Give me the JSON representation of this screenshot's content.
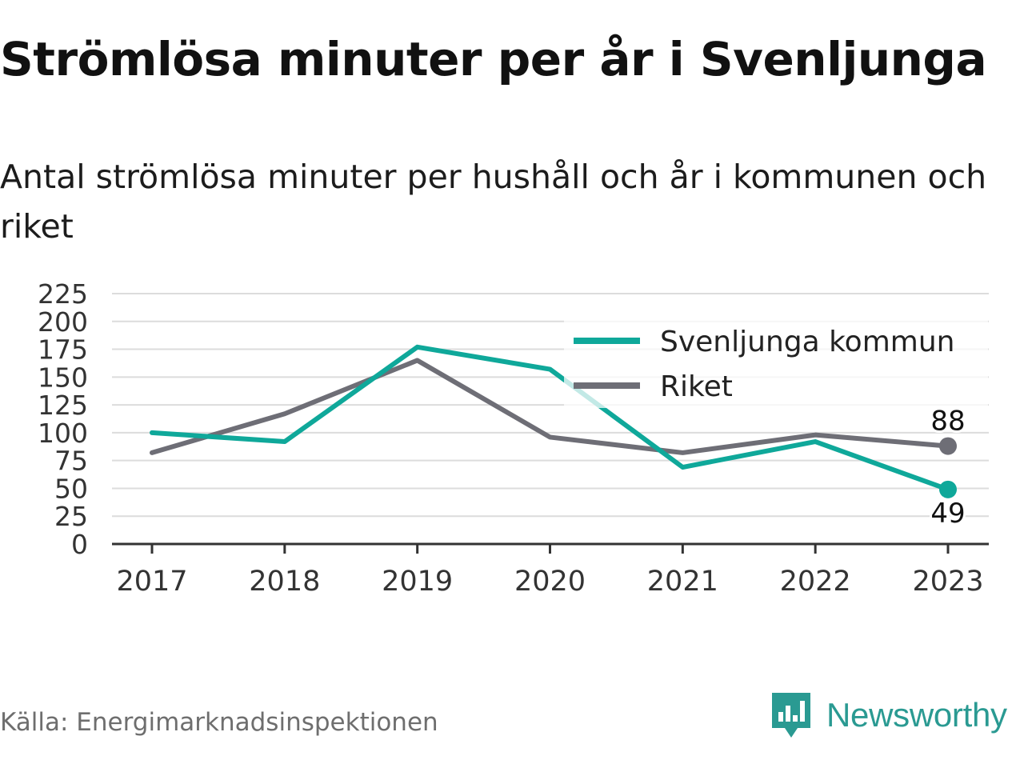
{
  "title": "Strömlösa minuter per år i Svenljunga",
  "subtitle": "Antal strömlösa minuter per hushåll och år i kommunen och riket",
  "source": "Källa: Energimarknadsinspektionen",
  "brand": {
    "name": "Newsworthy",
    "icon": "newsworthy-logo-icon",
    "color": "#2a9a92"
  },
  "chart_data": {
    "type": "line",
    "x": [
      "2017",
      "2018",
      "2019",
      "2020",
      "2021",
      "2022",
      "2023"
    ],
    "series": [
      {
        "name": "Svenljunga kommun",
        "color": "#0fa89a",
        "values": [
          100,
          92,
          177,
          157,
          69,
          92,
          49
        ],
        "end_label": "49"
      },
      {
        "name": "Riket",
        "color": "#6e6e76",
        "values": [
          82,
          117,
          165,
          96,
          82,
          98,
          88
        ],
        "end_label": "88"
      }
    ],
    "yticks": [
      0,
      25,
      50,
      75,
      100,
      125,
      150,
      175,
      200,
      225
    ],
    "ylim": [
      0,
      225
    ],
    "grid": true,
    "legend": "top-right"
  }
}
